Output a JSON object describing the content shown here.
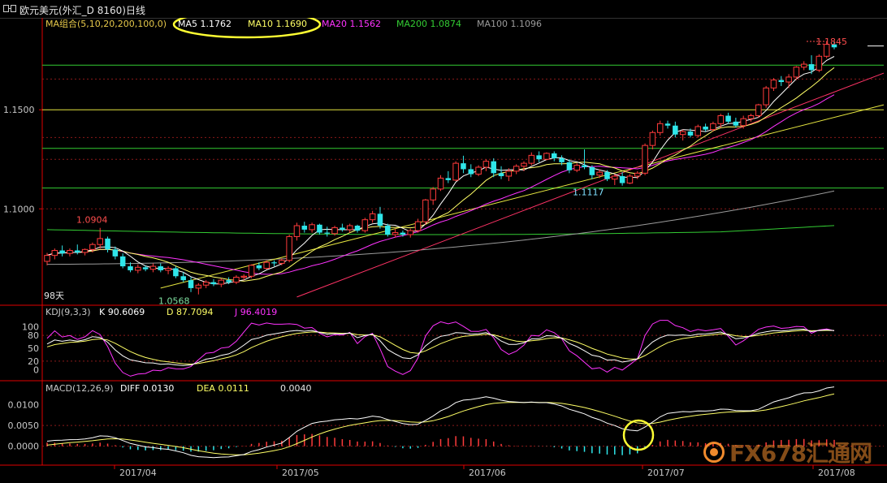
{
  "title": "欧元美元(外汇_D 8160)日线",
  "watermark": "FX678汇通网",
  "colors": {
    "candle_up": "#ff3b3b",
    "candle_down": "#2fe6ea",
    "ma5": "#ffffff",
    "ma10": "#ffff66",
    "ma20": "#ff33ff",
    "ma200": "#33cc33",
    "ma100": "#9b9b9b",
    "hline_green": "#33cc33",
    "hline_yellow": "#e6e640",
    "trend_yellow": "#e6e640",
    "trend_red": "#ff3366",
    "axis": "#e00000",
    "annotation": "#ffff33"
  },
  "legend": {
    "ma_label": "MA组合(5,10,20,200,100,0)",
    "ma5": "MA5 1.1762",
    "ma10": "MA10 1.1690",
    "ma20": "MA20 1.1562",
    "ma200": "MA200 1.0874",
    "ma100": "MA100 1.1096",
    "kdj_label": "KDJ(9,3,3)",
    "kdj_k": "K  90.6069",
    "kdj_d": "D  87.7094",
    "kdj_j": "J  96.4019",
    "macd_label": "MACD(12,26,9)",
    "macd_diff": "DIFF  0.0130",
    "macd_dea": "DEA  0.0111",
    "macd_val": "0.0040"
  },
  "annotations": {
    "high_right": "1.1845",
    "high_left": "1.0904",
    "low_left": "1.0568",
    "low_mid": "1.1117",
    "days": "98天"
  },
  "chart_data": [
    {
      "type": "candlestick",
      "title": "欧元美元(外汇_D 8160)日线",
      "yticks": [
        "1.1500",
        "1.1000"
      ],
      "ylim": [
        1.053,
        1.189
      ],
      "xticks": [
        "2017/04",
        "2017/05",
        "2017/06",
        "2017/07",
        "2017/08"
      ],
      "candles": [
        {
          "o": 1.0735,
          "h": 1.0778,
          "l": 1.0715,
          "c": 1.0765
        },
        {
          "o": 1.0765,
          "h": 1.08,
          "l": 1.0745,
          "c": 1.079
        },
        {
          "o": 1.079,
          "h": 1.0815,
          "l": 1.076,
          "c": 1.0775
        },
        {
          "o": 1.0775,
          "h": 1.08,
          "l": 1.076,
          "c": 1.079
        },
        {
          "o": 1.079,
          "h": 1.082,
          "l": 1.077,
          "c": 1.078
        },
        {
          "o": 1.078,
          "h": 1.08,
          "l": 1.0765,
          "c": 1.0795
        },
        {
          "o": 1.0795,
          "h": 1.083,
          "l": 1.078,
          "c": 1.082
        },
        {
          "o": 1.082,
          "h": 1.0904,
          "l": 1.08,
          "c": 1.085
        },
        {
          "o": 1.085,
          "h": 1.086,
          "l": 1.078,
          "c": 1.0795
        },
        {
          "o": 1.0795,
          "h": 1.081,
          "l": 1.0745,
          "c": 1.076
        },
        {
          "o": 1.076,
          "h": 1.0775,
          "l": 1.07,
          "c": 1.071
        },
        {
          "o": 1.071,
          "h": 1.073,
          "l": 1.068,
          "c": 1.069
        },
        {
          "o": 1.069,
          "h": 1.072,
          "l": 1.0675,
          "c": 1.0705
        },
        {
          "o": 1.0705,
          "h": 1.0715,
          "l": 1.0685,
          "c": 1.0695
        },
        {
          "o": 1.0695,
          "h": 1.0725,
          "l": 1.068,
          "c": 1.071
        },
        {
          "o": 1.071,
          "h": 1.0725,
          "l": 1.068,
          "c": 1.069
        },
        {
          "o": 1.069,
          "h": 1.071,
          "l": 1.067,
          "c": 1.07
        },
        {
          "o": 1.07,
          "h": 1.071,
          "l": 1.065,
          "c": 1.066
        },
        {
          "o": 1.066,
          "h": 1.068,
          "l": 1.063,
          "c": 1.064
        },
        {
          "o": 1.064,
          "h": 1.0655,
          "l": 1.058,
          "c": 1.06
        },
        {
          "o": 1.06,
          "h": 1.0625,
          "l": 1.0568,
          "c": 1.0615
        },
        {
          "o": 1.0615,
          "h": 1.064,
          "l": 1.06,
          "c": 1.063
        },
        {
          "o": 1.063,
          "h": 1.0645,
          "l": 1.061,
          "c": 1.062
        },
        {
          "o": 1.062,
          "h": 1.065,
          "l": 1.0605,
          "c": 1.064
        },
        {
          "o": 1.064,
          "h": 1.0655,
          "l": 1.062,
          "c": 1.063
        },
        {
          "o": 1.063,
          "h": 1.0665,
          "l": 1.062,
          "c": 1.0655
        },
        {
          "o": 1.0655,
          "h": 1.067,
          "l": 1.064,
          "c": 1.066
        },
        {
          "o": 1.066,
          "h": 1.072,
          "l": 1.065,
          "c": 1.0715
        },
        {
          "o": 1.0715,
          "h": 1.073,
          "l": 1.069,
          "c": 1.07
        },
        {
          "o": 1.07,
          "h": 1.074,
          "l": 1.0695,
          "c": 1.073
        },
        {
          "o": 1.073,
          "h": 1.074,
          "l": 1.071,
          "c": 1.0725
        },
        {
          "o": 1.0725,
          "h": 1.075,
          "l": 1.0715,
          "c": 1.074
        },
        {
          "o": 1.074,
          "h": 1.087,
          "l": 1.073,
          "c": 1.086
        },
        {
          "o": 1.086,
          "h": 1.093,
          "l": 1.084,
          "c": 1.0915
        },
        {
          "o": 1.0915,
          "h": 1.0935,
          "l": 1.088,
          "c": 1.0895
        },
        {
          "o": 1.0895,
          "h": 1.093,
          "l": 1.088,
          "c": 1.092
        },
        {
          "o": 1.092,
          "h": 1.0925,
          "l": 1.087,
          "c": 1.088
        },
        {
          "o": 1.088,
          "h": 1.091,
          "l": 1.086,
          "c": 1.0875
        },
        {
          "o": 1.0875,
          "h": 1.0915,
          "l": 1.0865,
          "c": 1.0905
        },
        {
          "o": 1.0905,
          "h": 1.0925,
          "l": 1.0885,
          "c": 1.0895
        },
        {
          "o": 1.0895,
          "h": 1.0925,
          "l": 1.088,
          "c": 1.0915
        },
        {
          "o": 1.0915,
          "h": 1.092,
          "l": 1.088,
          "c": 1.089
        },
        {
          "o": 1.089,
          "h": 1.0955,
          "l": 1.088,
          "c": 1.0945
        },
        {
          "o": 1.0945,
          "h": 1.099,
          "l": 1.093,
          "c": 1.0975
        },
        {
          "o": 1.0975,
          "h": 1.101,
          "l": 1.09,
          "c": 1.0915
        },
        {
          "o": 1.0915,
          "h": 1.0925,
          "l": 1.086,
          "c": 1.087
        },
        {
          "o": 1.087,
          "h": 1.09,
          "l": 1.0855,
          "c": 1.088
        },
        {
          "o": 1.088,
          "h": 1.089,
          "l": 1.086,
          "c": 1.087
        },
        {
          "o": 1.087,
          "h": 1.09,
          "l": 1.0855,
          "c": 1.089
        },
        {
          "o": 1.089,
          "h": 1.095,
          "l": 1.088,
          "c": 1.0935
        },
        {
          "o": 1.0935,
          "h": 1.105,
          "l": 1.092,
          "c": 1.1045
        },
        {
          "o": 1.1045,
          "h": 1.111,
          "l": 1.102,
          "c": 1.11
        },
        {
          "o": 1.11,
          "h": 1.117,
          "l": 1.109,
          "c": 1.1155
        },
        {
          "o": 1.1155,
          "h": 1.119,
          "l": 1.113,
          "c": 1.1145
        },
        {
          "o": 1.1145,
          "h": 1.124,
          "l": 1.114,
          "c": 1.123
        },
        {
          "o": 1.123,
          "h": 1.1268,
          "l": 1.118,
          "c": 1.12
        },
        {
          "o": 1.12,
          "h": 1.1225,
          "l": 1.116,
          "c": 1.1175
        },
        {
          "o": 1.1175,
          "h": 1.122,
          "l": 1.1165,
          "c": 1.121
        },
        {
          "o": 1.121,
          "h": 1.125,
          "l": 1.119,
          "c": 1.124
        },
        {
          "o": 1.124,
          "h": 1.1255,
          "l": 1.116,
          "c": 1.118
        },
        {
          "o": 1.118,
          "h": 1.1215,
          "l": 1.115,
          "c": 1.1165
        },
        {
          "o": 1.1165,
          "h": 1.1205,
          "l": 1.114,
          "c": 1.119
        },
        {
          "o": 1.119,
          "h": 1.1225,
          "l": 1.1175,
          "c": 1.1215
        },
        {
          "o": 1.1215,
          "h": 1.124,
          "l": 1.119,
          "c": 1.123
        },
        {
          "o": 1.123,
          "h": 1.1285,
          "l": 1.122,
          "c": 1.127
        },
        {
          "o": 1.127,
          "h": 1.129,
          "l": 1.1235,
          "c": 1.125
        },
        {
          "o": 1.125,
          "h": 1.1285,
          "l": 1.1245,
          "c": 1.128
        },
        {
          "o": 1.128,
          "h": 1.129,
          "l": 1.124,
          "c": 1.1255
        },
        {
          "o": 1.1255,
          "h": 1.127,
          "l": 1.122,
          "c": 1.1235
        },
        {
          "o": 1.1235,
          "h": 1.125,
          "l": 1.118,
          "c": 1.1195
        },
        {
          "o": 1.1195,
          "h": 1.123,
          "l": 1.1185,
          "c": 1.122
        },
        {
          "o": 1.122,
          "h": 1.13,
          "l": 1.12,
          "c": 1.121
        },
        {
          "o": 1.121,
          "h": 1.122,
          "l": 1.115,
          "c": 1.117
        },
        {
          "o": 1.117,
          "h": 1.12,
          "l": 1.1155,
          "c": 1.1185
        },
        {
          "o": 1.1185,
          "h": 1.1195,
          "l": 1.114,
          "c": 1.115
        },
        {
          "o": 1.115,
          "h": 1.1175,
          "l": 1.112,
          "c": 1.1165
        },
        {
          "o": 1.1165,
          "h": 1.1185,
          "l": 1.1117,
          "c": 1.113
        },
        {
          "o": 1.113,
          "h": 1.1175,
          "l": 1.1125,
          "c": 1.1165
        },
        {
          "o": 1.1165,
          "h": 1.119,
          "l": 1.115,
          "c": 1.118
        },
        {
          "o": 1.118,
          "h": 1.133,
          "l": 1.117,
          "c": 1.132
        },
        {
          "o": 1.132,
          "h": 1.1395,
          "l": 1.13,
          "c": 1.1385
        },
        {
          "o": 1.1385,
          "h": 1.1445,
          "l": 1.137,
          "c": 1.143
        },
        {
          "o": 1.143,
          "h": 1.1445,
          "l": 1.1405,
          "c": 1.142
        },
        {
          "o": 1.142,
          "h": 1.144,
          "l": 1.136,
          "c": 1.1375
        },
        {
          "o": 1.1375,
          "h": 1.14,
          "l": 1.1345,
          "c": 1.139
        },
        {
          "o": 1.139,
          "h": 1.1405,
          "l": 1.136,
          "c": 1.137
        },
        {
          "o": 1.137,
          "h": 1.1425,
          "l": 1.136,
          "c": 1.1415
        },
        {
          "o": 1.1415,
          "h": 1.143,
          "l": 1.139,
          "c": 1.14
        },
        {
          "o": 1.14,
          "h": 1.144,
          "l": 1.139,
          "c": 1.143
        },
        {
          "o": 1.143,
          "h": 1.148,
          "l": 1.141,
          "c": 1.147
        },
        {
          "o": 1.147,
          "h": 1.1485,
          "l": 1.143,
          "c": 1.144
        },
        {
          "o": 1.144,
          "h": 1.146,
          "l": 1.141,
          "c": 1.142
        },
        {
          "o": 1.142,
          "h": 1.147,
          "l": 1.1405,
          "c": 1.1455
        },
        {
          "o": 1.1455,
          "h": 1.148,
          "l": 1.144,
          "c": 1.147
        },
        {
          "o": 1.147,
          "h": 1.153,
          "l": 1.146,
          "c": 1.1525
        },
        {
          "o": 1.1525,
          "h": 1.162,
          "l": 1.151,
          "c": 1.161
        },
        {
          "o": 1.161,
          "h": 1.166,
          "l": 1.1595,
          "c": 1.165
        },
        {
          "o": 1.165,
          "h": 1.167,
          "l": 1.162,
          "c": 1.164
        },
        {
          "o": 1.164,
          "h": 1.168,
          "l": 1.161,
          "c": 1.1665
        },
        {
          "o": 1.1665,
          "h": 1.172,
          "l": 1.165,
          "c": 1.1715
        },
        {
          "o": 1.1715,
          "h": 1.1745,
          "l": 1.17,
          "c": 1.173
        },
        {
          "o": 1.173,
          "h": 1.1775,
          "l": 1.168,
          "c": 1.17
        },
        {
          "o": 1.17,
          "h": 1.178,
          "l": 1.169,
          "c": 1.177
        },
        {
          "o": 1.177,
          "h": 1.1845,
          "l": 1.176,
          "c": 1.183
        },
        {
          "o": 1.183,
          "h": 1.1845,
          "l": 1.1805,
          "c": 1.1815
        }
      ]
    },
    {
      "type": "line",
      "title": "KDJ(9,3,3)",
      "yticks": [
        "100",
        "80",
        "50",
        "20",
        "0"
      ],
      "ylim": [
        -20,
        120
      ],
      "series": [
        {
          "name": "K"
        },
        {
          "name": "D"
        },
        {
          "name": "J"
        }
      ]
    },
    {
      "type": "bar",
      "title": "MACD(12,26,9)",
      "yticks": [
        "0.0100",
        "0.0050",
        "0.0000"
      ],
      "ylim": [
        -0.004,
        0.0125
      ],
      "series": [
        {
          "name": "DIFF"
        },
        {
          "name": "DEA"
        }
      ]
    }
  ]
}
